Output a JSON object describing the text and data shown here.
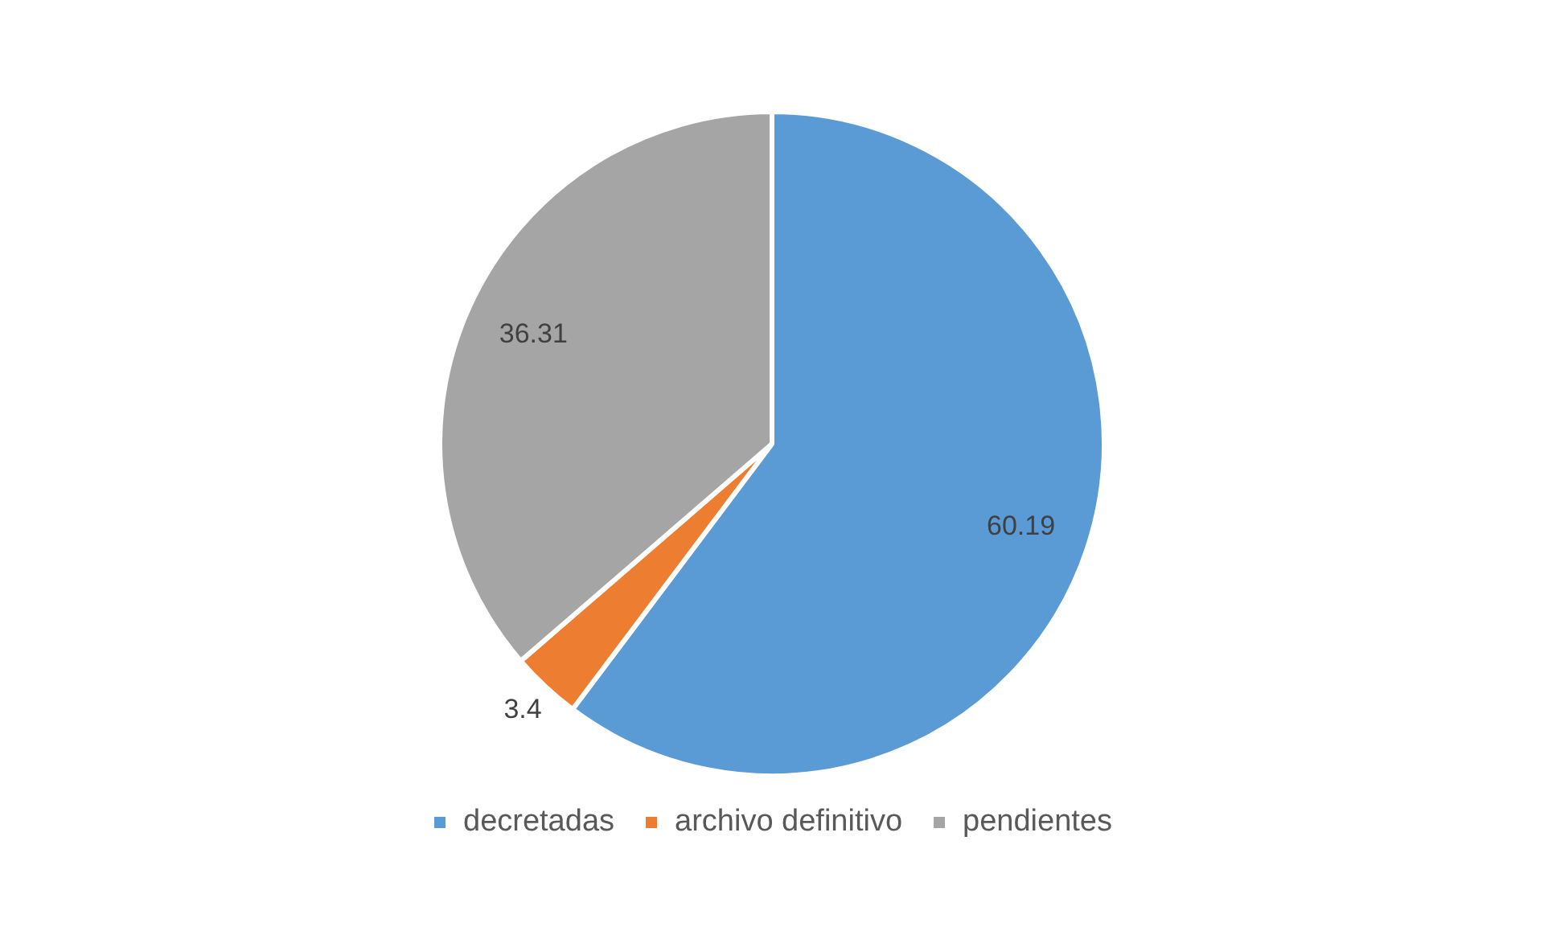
{
  "chart_data": {
    "type": "pie",
    "categories": [
      "decretadas",
      "archivo definitivo",
      "pendientes"
    ],
    "values": [
      60.19,
      3.4,
      36.31
    ],
    "colors": [
      "#5b9bd5",
      "#ed7d31",
      "#a5a5a5"
    ],
    "data_labels": true,
    "legend": "bottom"
  }
}
